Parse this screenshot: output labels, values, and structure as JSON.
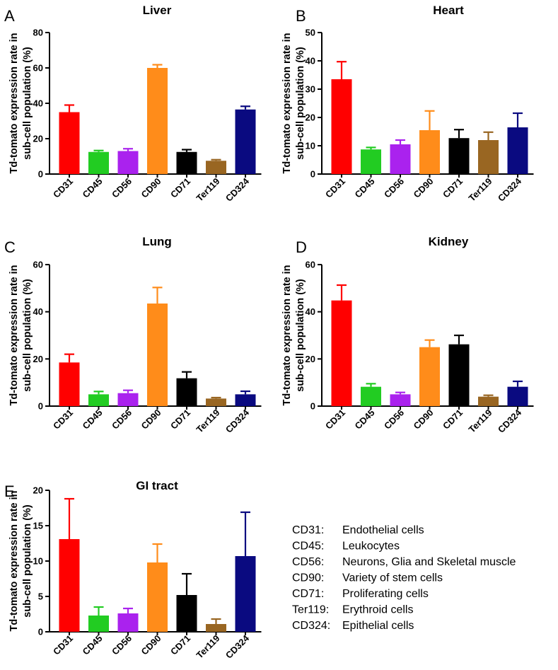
{
  "figure": {
    "ylabel_line1": "Td-tomato expression rate in",
    "ylabel_line2": "sub-cell population (%)"
  },
  "colors": {
    "CD31": "#ff0000",
    "CD45": "#22cc22",
    "CD56": "#aa22ee",
    "CD90": "#ff8c1a",
    "CD71": "#000000",
    "Ter119": "#996622",
    "CD324": "#0a0a80"
  },
  "chart_data": [
    {
      "panel": "A",
      "type": "bar",
      "title": "Liver",
      "categories": [
        "CD31",
        "CD45",
        "CD56",
        "CD90",
        "CD71",
        "Ter119",
        "CD324"
      ],
      "values": [
        35,
        12.5,
        13,
        60,
        12.5,
        7.5,
        36.5
      ],
      "errors": [
        4,
        0.8,
        1.3,
        1.8,
        1.3,
        0.6,
        1.8
      ],
      "ylim": [
        0,
        80
      ],
      "yticks": [
        0,
        20,
        40,
        60,
        80
      ],
      "ylabel": "Td-tomato expression rate in sub-cell population (%)"
    },
    {
      "panel": "B",
      "type": "bar",
      "title": "Heart",
      "categories": [
        "CD31",
        "CD45",
        "CD56",
        "CD90",
        "CD71",
        "Ter119",
        "CD324"
      ],
      "values": [
        33.5,
        8.7,
        10.5,
        15.5,
        12.7,
        12,
        16.5
      ],
      "errors": [
        6.2,
        0.7,
        1.5,
        6.8,
        3,
        2.8,
        5
      ],
      "ylim": [
        0,
        50
      ],
      "yticks": [
        0,
        10,
        20,
        30,
        40,
        50
      ],
      "ylabel": "Td-tomato expression rate in sub-cell population (%)"
    },
    {
      "panel": "C",
      "type": "bar",
      "title": "Lung",
      "categories": [
        "CD31",
        "CD45",
        "CD56",
        "CD90",
        "CD71",
        "Ter119",
        "CD324"
      ],
      "values": [
        18.5,
        5,
        5.5,
        43.5,
        11.8,
        3.2,
        5
      ],
      "errors": [
        3.5,
        1.2,
        1.2,
        6.8,
        2.7,
        0.4,
        1.3
      ],
      "ylim": [
        0,
        60
      ],
      "yticks": [
        0,
        20,
        40,
        60
      ],
      "ylabel": "Td-tomato expression rate in sub-cell population (%)"
    },
    {
      "panel": "D",
      "type": "bar",
      "title": "Kidney",
      "categories": [
        "CD31",
        "CD45",
        "CD56",
        "CD90",
        "CD71",
        "Ter119",
        "CD324"
      ],
      "values": [
        44.8,
        8.2,
        5,
        25,
        26.2,
        4,
        8.2
      ],
      "errors": [
        6.5,
        1.3,
        0.8,
        3,
        3.8,
        0.6,
        2.3
      ],
      "ylim": [
        0,
        60
      ],
      "yticks": [
        0,
        20,
        40,
        60
      ],
      "ylabel": "Td-tomato expression rate in sub-cell population (%)"
    },
    {
      "panel": "E",
      "type": "bar",
      "title": "GI tract",
      "categories": [
        "CD31",
        "CD45",
        "CD56",
        "CD90",
        "CD71",
        "Ter119",
        "CD324"
      ],
      "values": [
        13.1,
        2.3,
        2.6,
        9.8,
        5.2,
        1.1,
        10.7
      ],
      "errors": [
        5.7,
        1.2,
        0.7,
        2.6,
        3,
        0.7,
        6.2
      ],
      "ylim": [
        0,
        20
      ],
      "yticks": [
        0,
        5,
        10,
        15,
        20
      ],
      "ylabel": "Td-tomato expression rate in sub-cell population (%)"
    }
  ],
  "legend": [
    {
      "code": "CD31:",
      "desc": "Endothelial cells"
    },
    {
      "code": "CD45:",
      "desc": "Leukocytes"
    },
    {
      "code": "CD56:",
      "desc": "Neurons, Glia and Skeletal muscle"
    },
    {
      "code": "CD90:",
      "desc": "Variety of stem cells"
    },
    {
      "code": "CD71:",
      "desc": "Proliferating cells"
    },
    {
      "code": "Ter119:",
      "desc": "Erythroid cells"
    },
    {
      "code": "CD324:",
      "desc": "Epithelial cells"
    }
  ]
}
